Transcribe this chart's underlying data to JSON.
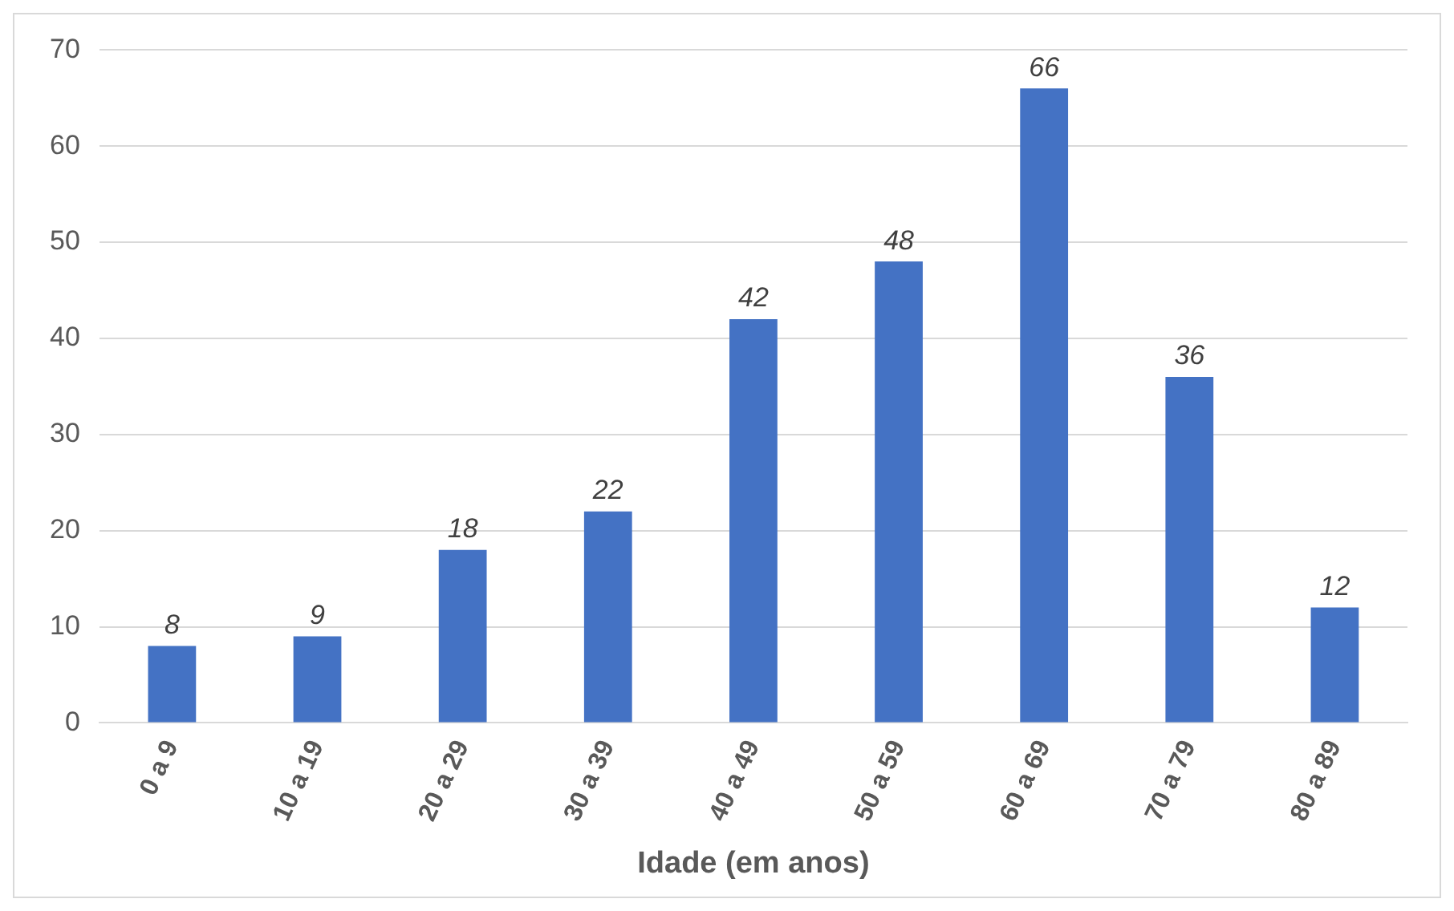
{
  "chart_data": {
    "type": "bar",
    "xlabel": "Idade (em anos)",
    "categories": [
      "0 a 9",
      "10 a 19",
      "20 a 29",
      "30 a 39",
      "40 a 49",
      "50 a 59",
      "60 a 69",
      "70 a 79",
      "80 a 89"
    ],
    "values": [
      8,
      9,
      18,
      22,
      42,
      48,
      66,
      36,
      12
    ],
    "color": "#4472c4",
    "ylim": [
      0,
      70
    ],
    "yticks": [
      0,
      10,
      20,
      30,
      40,
      50,
      60,
      70
    ],
    "grid": "y",
    "data_labels": true
  }
}
